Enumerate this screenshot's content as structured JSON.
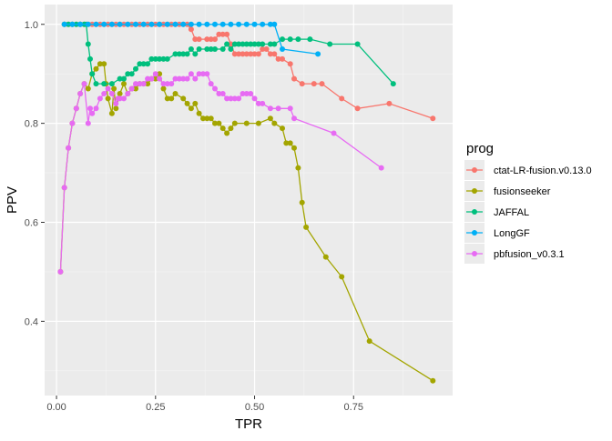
{
  "chart_data": {
    "type": "line",
    "xlabel": "TPR",
    "ylabel": "PPV",
    "xlim": [
      -0.03,
      1.0
    ],
    "ylim": [
      0.25,
      1.04
    ],
    "x_ticks": [
      0.0,
      0.25,
      0.5,
      0.75
    ],
    "x_tick_labels": [
      "0.00",
      "0.25",
      "0.50",
      "0.75"
    ],
    "y_ticks": [
      0.4,
      0.6,
      0.8,
      1.0
    ],
    "y_tick_labels": [
      "0.4",
      "0.6",
      "0.8",
      "1.0"
    ],
    "grid": true,
    "legend_position": "right",
    "legend_title": "prog",
    "series": [
      {
        "name": "ctat-LR-fusion.v0.13.0",
        "color": "#F8766D",
        "points": [
          [
            0.02,
            1.0
          ],
          [
            0.03,
            1.0
          ],
          [
            0.04,
            1.0
          ],
          [
            0.05,
            1.0
          ],
          [
            0.06,
            1.0
          ],
          [
            0.07,
            1.0
          ],
          [
            0.08,
            1.0
          ],
          [
            0.09,
            1.0
          ],
          [
            0.1,
            1.0
          ],
          [
            0.11,
            1.0
          ],
          [
            0.12,
            1.0
          ],
          [
            0.13,
            1.0
          ],
          [
            0.14,
            1.0
          ],
          [
            0.15,
            1.0
          ],
          [
            0.16,
            1.0
          ],
          [
            0.17,
            1.0
          ],
          [
            0.18,
            1.0
          ],
          [
            0.19,
            1.0
          ],
          [
            0.2,
            1.0
          ],
          [
            0.21,
            1.0
          ],
          [
            0.22,
            1.0
          ],
          [
            0.23,
            1.0
          ],
          [
            0.24,
            1.0
          ],
          [
            0.25,
            1.0
          ],
          [
            0.26,
            1.0
          ],
          [
            0.27,
            1.0
          ],
          [
            0.28,
            1.0
          ],
          [
            0.29,
            1.0
          ],
          [
            0.3,
            1.0
          ],
          [
            0.31,
            1.0
          ],
          [
            0.32,
            1.0
          ],
          [
            0.33,
            1.0
          ],
          [
            0.34,
            0.99
          ],
          [
            0.35,
            0.97
          ],
          [
            0.36,
            0.97
          ],
          [
            0.38,
            0.97
          ],
          [
            0.39,
            0.97
          ],
          [
            0.4,
            0.97
          ],
          [
            0.41,
            0.98
          ],
          [
            0.42,
            0.98
          ],
          [
            0.43,
            0.98
          ],
          [
            0.44,
            0.96
          ],
          [
            0.45,
            0.94
          ],
          [
            0.46,
            0.94
          ],
          [
            0.47,
            0.94
          ],
          [
            0.48,
            0.94
          ],
          [
            0.49,
            0.94
          ],
          [
            0.5,
            0.94
          ],
          [
            0.51,
            0.94
          ],
          [
            0.52,
            0.95
          ],
          [
            0.53,
            0.95
          ],
          [
            0.54,
            0.94
          ],
          [
            0.55,
            0.94
          ],
          [
            0.56,
            0.93
          ],
          [
            0.57,
            0.93
          ],
          [
            0.59,
            0.92
          ],
          [
            0.6,
            0.89
          ],
          [
            0.62,
            0.88
          ],
          [
            0.65,
            0.88
          ],
          [
            0.67,
            0.88
          ],
          [
            0.72,
            0.85
          ],
          [
            0.76,
            0.83
          ],
          [
            0.84,
            0.84
          ],
          [
            0.95,
            0.81
          ]
        ]
      },
      {
        "name": "fusionseeker",
        "color": "#A3A500",
        "points": [
          [
            0.01,
            0.5
          ],
          [
            0.02,
            0.67
          ],
          [
            0.03,
            0.75
          ],
          [
            0.04,
            0.8
          ],
          [
            0.05,
            0.83
          ],
          [
            0.06,
            0.86
          ],
          [
            0.07,
            0.88
          ],
          [
            0.08,
            0.87
          ],
          [
            0.09,
            0.9
          ],
          [
            0.1,
            0.91
          ],
          [
            0.11,
            0.92
          ],
          [
            0.12,
            0.92
          ],
          [
            0.125,
            0.88
          ],
          [
            0.13,
            0.85
          ],
          [
            0.14,
            0.82
          ],
          [
            0.145,
            0.87
          ],
          [
            0.15,
            0.83
          ],
          [
            0.16,
            0.86
          ],
          [
            0.17,
            0.88
          ],
          [
            0.18,
            0.86
          ],
          [
            0.19,
            0.87
          ],
          [
            0.2,
            0.87
          ],
          [
            0.21,
            0.88
          ],
          [
            0.22,
            0.88
          ],
          [
            0.23,
            0.88
          ],
          [
            0.24,
            0.89
          ],
          [
            0.25,
            0.89
          ],
          [
            0.26,
            0.9
          ],
          [
            0.27,
            0.87
          ],
          [
            0.28,
            0.85
          ],
          [
            0.29,
            0.85
          ],
          [
            0.3,
            0.86
          ],
          [
            0.32,
            0.85
          ],
          [
            0.33,
            0.84
          ],
          [
            0.34,
            0.83
          ],
          [
            0.35,
            0.84
          ],
          [
            0.36,
            0.82
          ],
          [
            0.37,
            0.81
          ],
          [
            0.38,
            0.81
          ],
          [
            0.39,
            0.81
          ],
          [
            0.4,
            0.8
          ],
          [
            0.41,
            0.8
          ],
          [
            0.42,
            0.79
          ],
          [
            0.43,
            0.78
          ],
          [
            0.44,
            0.79
          ],
          [
            0.45,
            0.8
          ],
          [
            0.48,
            0.8
          ],
          [
            0.51,
            0.8
          ],
          [
            0.54,
            0.81
          ],
          [
            0.55,
            0.8
          ],
          [
            0.57,
            0.79
          ],
          [
            0.58,
            0.76
          ],
          [
            0.59,
            0.76
          ],
          [
            0.6,
            0.75
          ],
          [
            0.61,
            0.71
          ],
          [
            0.62,
            0.64
          ],
          [
            0.63,
            0.59
          ],
          [
            0.68,
            0.53
          ],
          [
            0.72,
            0.49
          ],
          [
            0.79,
            0.36
          ],
          [
            0.95,
            0.28
          ]
        ]
      },
      {
        "name": "JAFFAL",
        "color": "#00BF7D",
        "points": [
          [
            0.02,
            1.0
          ],
          [
            0.03,
            1.0
          ],
          [
            0.04,
            1.0
          ],
          [
            0.05,
            1.0
          ],
          [
            0.06,
            1.0
          ],
          [
            0.07,
            1.0
          ],
          [
            0.075,
            1.0
          ],
          [
            0.08,
            0.96
          ],
          [
            0.085,
            0.93
          ],
          [
            0.09,
            0.9
          ],
          [
            0.1,
            0.88
          ],
          [
            0.12,
            0.88
          ],
          [
            0.14,
            0.88
          ],
          [
            0.16,
            0.89
          ],
          [
            0.17,
            0.89
          ],
          [
            0.18,
            0.9
          ],
          [
            0.19,
            0.9
          ],
          [
            0.2,
            0.91
          ],
          [
            0.21,
            0.92
          ],
          [
            0.22,
            0.92
          ],
          [
            0.23,
            0.92
          ],
          [
            0.24,
            0.93
          ],
          [
            0.25,
            0.93
          ],
          [
            0.26,
            0.93
          ],
          [
            0.27,
            0.93
          ],
          [
            0.28,
            0.93
          ],
          [
            0.3,
            0.94
          ],
          [
            0.31,
            0.94
          ],
          [
            0.32,
            0.94
          ],
          [
            0.33,
            0.94
          ],
          [
            0.34,
            0.95
          ],
          [
            0.35,
            0.94
          ],
          [
            0.36,
            0.95
          ],
          [
            0.38,
            0.95
          ],
          [
            0.39,
            0.95
          ],
          [
            0.4,
            0.95
          ],
          [
            0.42,
            0.95
          ],
          [
            0.43,
            0.96
          ],
          [
            0.44,
            0.95
          ],
          [
            0.45,
            0.96
          ],
          [
            0.46,
            0.96
          ],
          [
            0.47,
            0.96
          ],
          [
            0.48,
            0.96
          ],
          [
            0.49,
            0.96
          ],
          [
            0.5,
            0.96
          ],
          [
            0.51,
            0.96
          ],
          [
            0.52,
            0.96
          ],
          [
            0.54,
            0.96
          ],
          [
            0.55,
            0.96
          ],
          [
            0.57,
            0.97
          ],
          [
            0.59,
            0.97
          ],
          [
            0.61,
            0.97
          ],
          [
            0.64,
            0.97
          ],
          [
            0.69,
            0.96
          ],
          [
            0.76,
            0.96
          ],
          [
            0.85,
            0.88
          ]
        ]
      },
      {
        "name": "LongGF",
        "color": "#00B0F6",
        "points": [
          [
            0.02,
            1.0
          ],
          [
            0.04,
            1.0
          ],
          [
            0.06,
            1.0
          ],
          [
            0.08,
            1.0
          ],
          [
            0.1,
            1.0
          ],
          [
            0.12,
            1.0
          ],
          [
            0.14,
            1.0
          ],
          [
            0.16,
            1.0
          ],
          [
            0.18,
            1.0
          ],
          [
            0.2,
            1.0
          ],
          [
            0.22,
            1.0
          ],
          [
            0.24,
            1.0
          ],
          [
            0.26,
            1.0
          ],
          [
            0.28,
            1.0
          ],
          [
            0.3,
            1.0
          ],
          [
            0.32,
            1.0
          ],
          [
            0.34,
            1.0
          ],
          [
            0.36,
            1.0
          ],
          [
            0.38,
            1.0
          ],
          [
            0.4,
            1.0
          ],
          [
            0.42,
            1.0
          ],
          [
            0.44,
            1.0
          ],
          [
            0.46,
            1.0
          ],
          [
            0.48,
            1.0
          ],
          [
            0.5,
            1.0
          ],
          [
            0.52,
            1.0
          ],
          [
            0.54,
            1.0
          ],
          [
            0.55,
            1.0
          ],
          [
            0.57,
            0.95
          ],
          [
            0.66,
            0.94
          ]
        ]
      },
      {
        "name": "pbfusion_v0.3.1",
        "color": "#E76BF3",
        "points": [
          [
            0.01,
            0.5
          ],
          [
            0.02,
            0.67
          ],
          [
            0.03,
            0.75
          ],
          [
            0.04,
            0.8
          ],
          [
            0.05,
            0.83
          ],
          [
            0.06,
            0.86
          ],
          [
            0.07,
            0.88
          ],
          [
            0.08,
            0.8
          ],
          [
            0.085,
            0.83
          ],
          [
            0.09,
            0.82
          ],
          [
            0.1,
            0.83
          ],
          [
            0.11,
            0.85
          ],
          [
            0.12,
            0.86
          ],
          [
            0.13,
            0.87
          ],
          [
            0.14,
            0.86
          ],
          [
            0.15,
            0.84
          ],
          [
            0.155,
            0.85
          ],
          [
            0.16,
            0.85
          ],
          [
            0.17,
            0.85
          ],
          [
            0.18,
            0.86
          ],
          [
            0.19,
            0.87
          ],
          [
            0.2,
            0.88
          ],
          [
            0.21,
            0.88
          ],
          [
            0.22,
            0.88
          ],
          [
            0.23,
            0.89
          ],
          [
            0.24,
            0.89
          ],
          [
            0.25,
            0.9
          ],
          [
            0.26,
            0.89
          ],
          [
            0.27,
            0.88
          ],
          [
            0.28,
            0.88
          ],
          [
            0.29,
            0.88
          ],
          [
            0.3,
            0.89
          ],
          [
            0.31,
            0.89
          ],
          [
            0.32,
            0.89
          ],
          [
            0.33,
            0.89
          ],
          [
            0.34,
            0.9
          ],
          [
            0.35,
            0.89
          ],
          [
            0.36,
            0.9
          ],
          [
            0.37,
            0.9
          ],
          [
            0.38,
            0.9
          ],
          [
            0.39,
            0.88
          ],
          [
            0.4,
            0.87
          ],
          [
            0.41,
            0.86
          ],
          [
            0.42,
            0.86
          ],
          [
            0.43,
            0.85
          ],
          [
            0.44,
            0.85
          ],
          [
            0.45,
            0.85
          ],
          [
            0.46,
            0.85
          ],
          [
            0.47,
            0.86
          ],
          [
            0.48,
            0.86
          ],
          [
            0.49,
            0.86
          ],
          [
            0.5,
            0.85
          ],
          [
            0.51,
            0.84
          ],
          [
            0.52,
            0.84
          ],
          [
            0.54,
            0.83
          ],
          [
            0.56,
            0.83
          ],
          [
            0.59,
            0.83
          ],
          [
            0.6,
            0.81
          ],
          [
            0.7,
            0.78
          ],
          [
            0.82,
            0.71
          ]
        ]
      }
    ]
  }
}
